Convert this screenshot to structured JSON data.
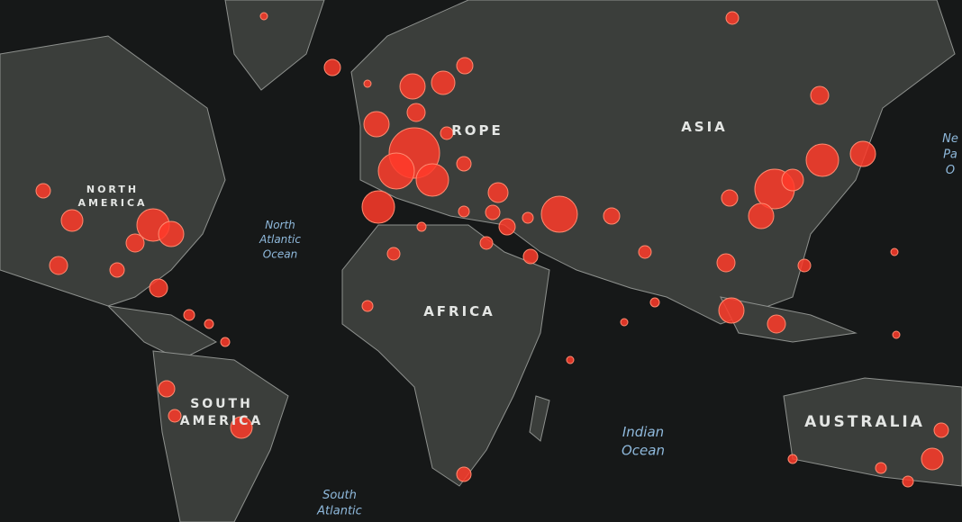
{
  "map": {
    "continents": [
      {
        "lines": [
          "NORTH",
          "AMERICA"
        ]
      },
      {
        "lines": [
          "ROPE"
        ]
      },
      {
        "lines": [
          "ASIA"
        ]
      },
      {
        "lines": [
          "AFRICA"
        ]
      },
      {
        "lines": [
          "SOUTH",
          "AMERICA"
        ]
      },
      {
        "lines": [
          "AUSTRALIA"
        ]
      }
    ],
    "oceans": [
      {
        "lines": [
          "North",
          "Atlantic",
          "Ocean"
        ]
      },
      {
        "lines": [
          "Indian",
          "Ocean"
        ]
      },
      {
        "lines": [
          "South",
          "Atlantic"
        ]
      },
      {
        "lines": [
          "Ne",
          "Pa",
          "O"
        ]
      }
    ]
  }
}
